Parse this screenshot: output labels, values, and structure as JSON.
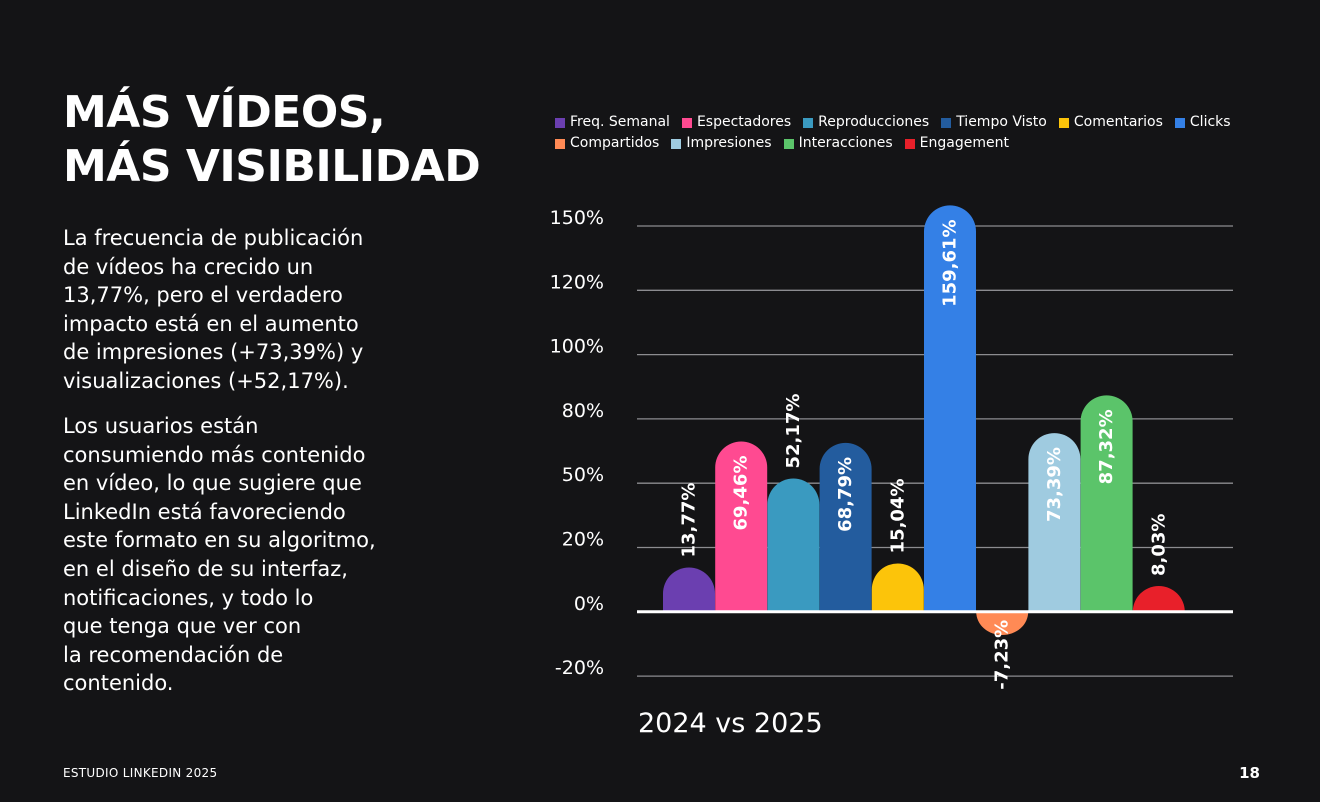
{
  "heading": {
    "lines": [
      "MÁS VÍDEOS,",
      "MÁS VISIBILIDAD"
    ]
  },
  "body": {
    "paragraph1_lines": [
      "La frecuencia de publicación",
      "de vídeos ha crecido un",
      "13,77%, pero el verdadero",
      "impacto está en el aumento",
      "de impresiones (+73,39%) y",
      "visualizaciones (+52,17%)."
    ],
    "paragraph2_lines": [
      "Los usuarios están",
      "consumiendo más contenido",
      "en vídeo, lo que sugiere que",
      "LinkedIn está favoreciendo",
      "este formato en su algoritmo,",
      "en el diseño de su interfaz,",
      "notificaciones, y todo lo",
      "que tenga que ver con",
      "la recomendación de",
      "contenido."
    ]
  },
  "footer": {
    "study": "ESTUDIO LINKEDIN 2025",
    "page": "18"
  },
  "chart_data": {
    "type": "bar",
    "title": "",
    "xlabel": "2024 vs 2025",
    "ylabel": "",
    "yticks": [
      "150%",
      "120%",
      "100%",
      "80%",
      "50%",
      "20%",
      "0%",
      "-20%"
    ],
    "legend_position": "top",
    "grid": true,
    "categories": [
      "Freq. Semanal",
      "Espectadores",
      "Reproducciones",
      "Tiempo Visto",
      "Comentarios",
      "Clicks",
      "Compartidos",
      "Impresiones",
      "Interacciones",
      "Engagement"
    ],
    "values": [
      13.77,
      69.46,
      52.17,
      68.79,
      15.04,
      159.61,
      -7.23,
      73.39,
      87.32,
      8.03
    ],
    "labels": [
      "13,77%",
      "69,46%",
      "52,17%",
      "68,79%",
      "15,04%",
      "159,61%",
      "-7,23%",
      "73,39%",
      "87,32%",
      "8,03%"
    ],
    "colors": [
      "#6b3fb0",
      "#ff4a91",
      "#3a9ac0",
      "#235c9e",
      "#fcc40a",
      "#3480e6",
      "#ff8a55",
      "#9fcbe0",
      "#5bc46a",
      "#e8202a"
    ]
  }
}
